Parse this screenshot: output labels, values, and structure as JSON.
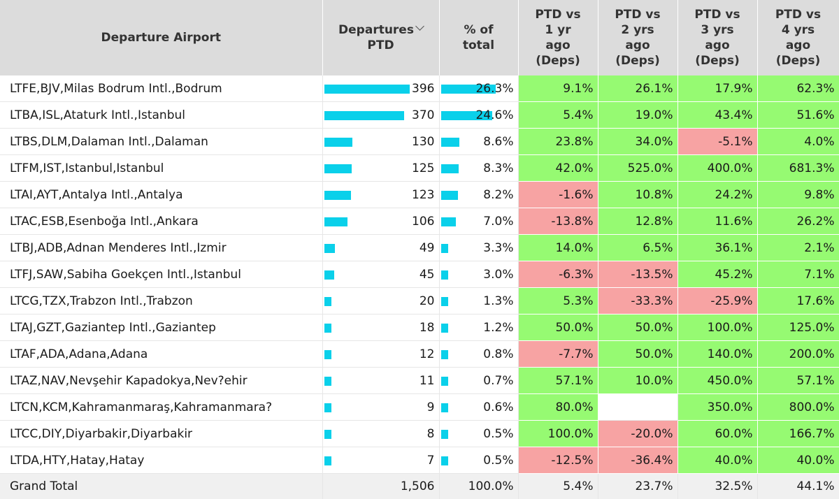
{
  "headers": {
    "airport": "Departure Airport",
    "departures": [
      "Departures",
      "PTD"
    ],
    "pct_total": [
      "% of",
      "total"
    ],
    "vs1": [
      "PTD vs",
      "1 yr",
      "ago",
      "(Deps)"
    ],
    "vs2": [
      "PTD vs",
      "2 yrs",
      "ago",
      "(Deps)"
    ],
    "vs3": [
      "PTD vs",
      "3 yrs",
      "ago",
      "(Deps)"
    ],
    "vs4": [
      "PTD vs",
      "4 yrs",
      "ago",
      "(Deps)"
    ]
  },
  "colors": {
    "bar": "#0ad0ea",
    "positive": "#96fa72",
    "negative": "#f7a3a3",
    "header": "#dcdcdc"
  },
  "rows": [
    {
      "airport": "LTFE,BJV,Milas Bodrum Intl.,Bodrum",
      "departures": "396",
      "dep_value": 396,
      "pct": "26.3%",
      "pct_value": 26.3,
      "vs1": "9.1%",
      "vs2": "26.1%",
      "vs3": "17.9%",
      "vs4": "62.3%"
    },
    {
      "airport": "LTBA,ISL,Ataturk Intl.,Istanbul",
      "departures": "370",
      "dep_value": 370,
      "pct": "24.6%",
      "pct_value": 24.6,
      "vs1": "5.4%",
      "vs2": "19.0%",
      "vs3": "43.4%",
      "vs4": "51.6%"
    },
    {
      "airport": "LTBS,DLM,Dalaman Intl.,Dalaman",
      "departures": "130",
      "dep_value": 130,
      "pct": "8.6%",
      "pct_value": 8.6,
      "vs1": "23.8%",
      "vs2": "34.0%",
      "vs3": "-5.1%",
      "vs4": "4.0%"
    },
    {
      "airport": "LTFM,IST,Istanbul,Istanbul",
      "departures": "125",
      "dep_value": 125,
      "pct": "8.3%",
      "pct_value": 8.3,
      "vs1": "42.0%",
      "vs2": "525.0%",
      "vs3": "400.0%",
      "vs4": "681.3%"
    },
    {
      "airport": "LTAI,AYT,Antalya Intl.,Antalya",
      "departures": "123",
      "dep_value": 123,
      "pct": "8.2%",
      "pct_value": 8.2,
      "vs1": "-1.6%",
      "vs2": "10.8%",
      "vs3": "24.2%",
      "vs4": "9.8%"
    },
    {
      "airport": "LTAC,ESB,Esenboğa Intl.,Ankara",
      "departures": "106",
      "dep_value": 106,
      "pct": "7.0%",
      "pct_value": 7.0,
      "vs1": "-13.8%",
      "vs2": "12.8%",
      "vs3": "11.6%",
      "vs4": "26.2%"
    },
    {
      "airport": "LTBJ,ADB,Adnan Menderes Intl.,Izmir",
      "departures": "49",
      "dep_value": 49,
      "pct": "3.3%",
      "pct_value": 3.3,
      "vs1": "14.0%",
      "vs2": "6.5%",
      "vs3": "36.1%",
      "vs4": "2.1%"
    },
    {
      "airport": "LTFJ,SAW,Sabiha Goekçen Intl.,Istanbul",
      "departures": "45",
      "dep_value": 45,
      "pct": "3.0%",
      "pct_value": 3.0,
      "vs1": "-6.3%",
      "vs2": "-13.5%",
      "vs3": "45.2%",
      "vs4": "7.1%"
    },
    {
      "airport": "LTCG,TZX,Trabzon Intl.,Trabzon",
      "departures": "20",
      "dep_value": 20,
      "pct": "1.3%",
      "pct_value": 1.3,
      "vs1": "5.3%",
      "vs2": "-33.3%",
      "vs3": "-25.9%",
      "vs4": "17.6%"
    },
    {
      "airport": "LTAJ,GZT,Gaziantep Intl.,Gaziantep",
      "departures": "18",
      "dep_value": 18,
      "pct": "1.2%",
      "pct_value": 1.2,
      "vs1": "50.0%",
      "vs2": "50.0%",
      "vs3": "100.0%",
      "vs4": "125.0%"
    },
    {
      "airport": "LTAF,ADA,Adana,Adana",
      "departures": "12",
      "dep_value": 12,
      "pct": "0.8%",
      "pct_value": 0.8,
      "vs1": "-7.7%",
      "vs2": "50.0%",
      "vs3": "140.0%",
      "vs4": "200.0%"
    },
    {
      "airport": "LTAZ,NAV,Nevşehir Kapadokya,Nev?ehir",
      "departures": "11",
      "dep_value": 11,
      "pct": "0.7%",
      "pct_value": 0.7,
      "vs1": "57.1%",
      "vs2": "10.0%",
      "vs3": "450.0%",
      "vs4": "57.1%"
    },
    {
      "airport": "LTCN,KCM,Kahramanmaraş,Kahramanmara?",
      "departures": "9",
      "dep_value": 9,
      "pct": "0.6%",
      "pct_value": 0.6,
      "vs1": "80.0%",
      "vs2": "",
      "vs3": "350.0%",
      "vs4": "800.0%"
    },
    {
      "airport": "LTCC,DIY,Diyarbakir,Diyarbakir",
      "departures": "8",
      "dep_value": 8,
      "pct": "0.5%",
      "pct_value": 0.5,
      "vs1": "100.0%",
      "vs2": "-20.0%",
      "vs3": "60.0%",
      "vs4": "166.7%"
    },
    {
      "airport": "LTDA,HTY,Hatay,Hatay",
      "departures": "7",
      "dep_value": 7,
      "pct": "0.5%",
      "pct_value": 0.5,
      "vs1": "-12.5%",
      "vs2": "-36.4%",
      "vs3": "40.0%",
      "vs4": "40.0%"
    }
  ],
  "total": {
    "label": "Grand Total",
    "departures": "1,506",
    "pct": "100.0%",
    "vs1": "5.4%",
    "vs2": "23.7%",
    "vs3": "32.5%",
    "vs4": "44.1%"
  }
}
